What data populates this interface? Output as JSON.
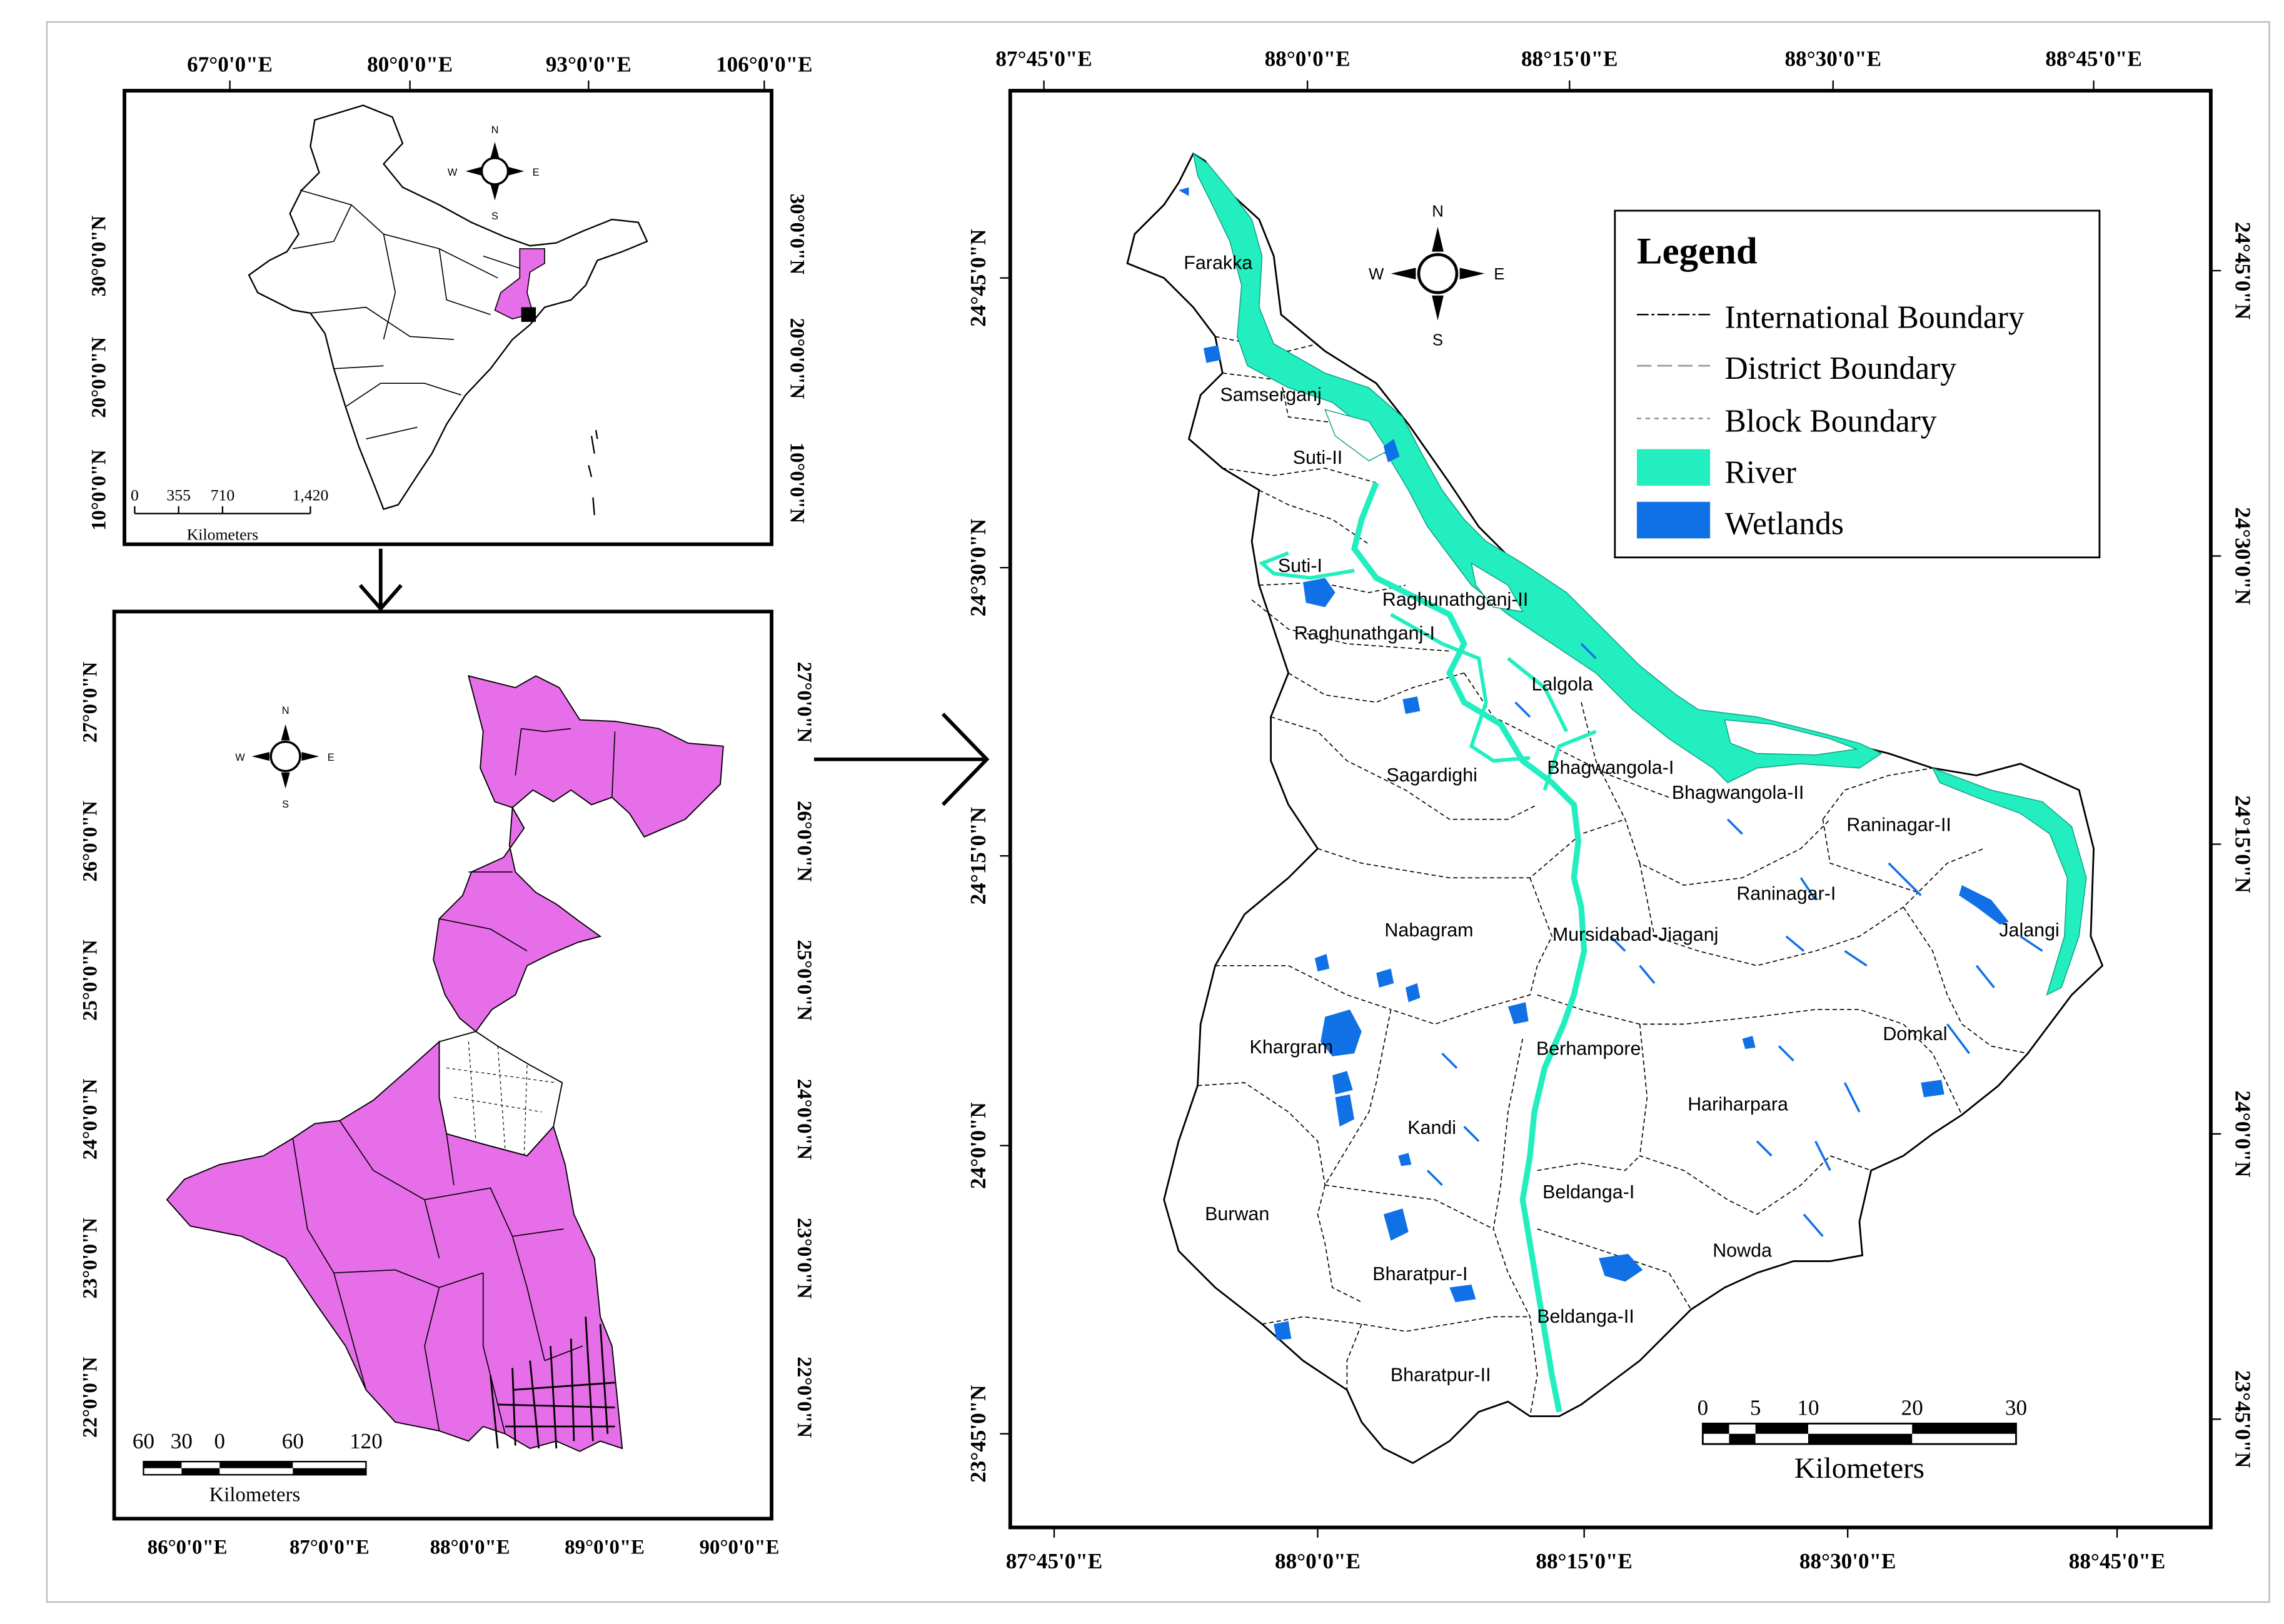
{
  "inset_india": {
    "top_ticks": [
      "67°0'0\"E",
      "80°0'0\"E",
      "93°0'0\"E",
      "106°0'0\"E"
    ],
    "left_ticks": [
      "30°0'0\"N",
      "20°0'0\"N",
      "10°0'0\"N"
    ],
    "right_ticks": [
      "30°0'0\"N",
      "20°0'0\"N",
      "10°0'0\"N"
    ],
    "scale_numbers": [
      "0",
      "355",
      "710",
      "1,420"
    ],
    "scale_unit": "Kilometers",
    "compass": {
      "n": "N",
      "s": "S",
      "e": "E",
      "w": "W"
    }
  },
  "inset_wb": {
    "bottom_ticks": [
      "86°0'0\"E",
      "87°0'0\"E",
      "88°0'0\"E",
      "89°0'0\"E",
      "90°0'0\"E"
    ],
    "left_ticks": [
      "27°0'0\"N",
      "26°0'0\"N",
      "25°0'0\"N",
      "24°0'0\"N",
      "23°0'0\"N",
      "22°0'0\"N"
    ],
    "right_ticks": [
      "27°0'0\"N",
      "26°0'0\"N",
      "25°0'0\"N",
      "24°0'0\"N",
      "23°0'0\"N",
      "22°0'0\"N"
    ],
    "scale_numbers": [
      "60",
      "30",
      "0",
      "60",
      "120"
    ],
    "scale_unit": "Kilometers",
    "compass": {
      "n": "N",
      "s": "S",
      "e": "E",
      "w": "W"
    }
  },
  "main_map": {
    "top_ticks": [
      "87°45'0\"E",
      "88°0'0\"E",
      "88°15'0\"E",
      "88°30'0\"E",
      "88°45'0\"E"
    ],
    "bottom_ticks": [
      "87°45'0\"E",
      "88°0'0\"E",
      "88°15'0\"E",
      "88°30'0\"E",
      "88°45'0\"E"
    ],
    "left_ticks": [
      "24°45'0\"N",
      "24°30'0\"N",
      "24°15'0\"N",
      "24°0'0\"N",
      "23°45'0\"N"
    ],
    "right_ticks": [
      "24°45'0\"N",
      "24°30'0\"N",
      "24°15'0\"N",
      "24°0'0\"N",
      "23°45'0\"N"
    ],
    "blocks": [
      "Farakka",
      "Samserganj",
      "Suti-II",
      "Suti-I",
      "Raghunathganj-II",
      "Raghunathganj-I",
      "Lalgola",
      "Sagardighi",
      "Bhagwangola-I",
      "Bhagwangola-II",
      "Raninagar-II",
      "Raninagar-I",
      "Nabagram",
      "Mursidabad-Jiaganj",
      "Jalangi",
      "Khargram",
      "Berhampore",
      "Domkal",
      "Hariharpara",
      "Kandi",
      "Burwan",
      "Beldanga-I",
      "Nowda",
      "Bharatpur-I",
      "Beldanga-II",
      "Bharatpur-II"
    ],
    "scale_numbers": [
      "0",
      "5",
      "10",
      "20",
      "30"
    ],
    "scale_unit": "Kilometers",
    "compass": {
      "n": "N",
      "s": "S",
      "e": "E",
      "w": "W"
    }
  },
  "legend": {
    "title": "Legend",
    "items": [
      {
        "label": "International Boundary",
        "symbol": "dash-dot-line"
      },
      {
        "label": "District Boundary",
        "symbol": "long-dash-line"
      },
      {
        "label": "Block Boundary",
        "symbol": "short-dash-line"
      },
      {
        "label": "River",
        "symbol": "fill",
        "color": "#22eec0"
      },
      {
        "label": "Wetlands",
        "symbol": "fill",
        "color": "#1070e6"
      }
    ]
  },
  "colors": {
    "state_fill": "#e76ee9",
    "river": "#22eec0",
    "wetland": "#1070e6",
    "boundary": "#000000"
  }
}
